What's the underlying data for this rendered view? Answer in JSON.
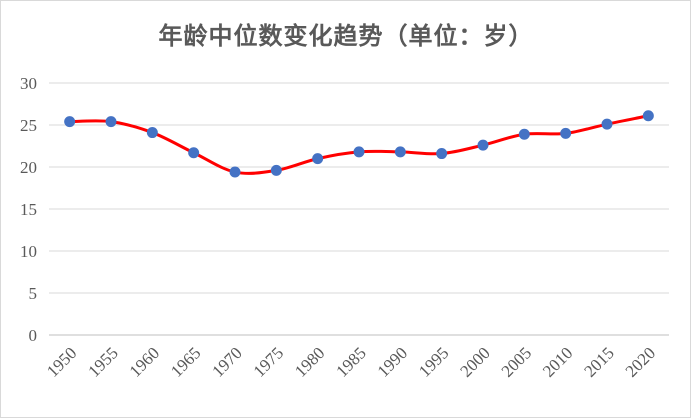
{
  "chart_data": {
    "type": "line",
    "title": "年龄中位数变化趋势（单位：岁）",
    "xlabel": "",
    "ylabel": "",
    "x": [
      "1950",
      "1955",
      "1960",
      "1965",
      "1970",
      "1975",
      "1980",
      "1985",
      "1990",
      "1995",
      "2000",
      "2005",
      "2010",
      "2015",
      "2020"
    ],
    "series": [
      {
        "values": [
          25.4,
          25.4,
          24.1,
          21.7,
          19.4,
          19.6,
          21.0,
          21.8,
          21.8,
          21.6,
          22.6,
          23.9,
          24.0,
          25.1,
          26.1
        ],
        "line_color": "#ff0000",
        "marker_color": "#4472c4"
      }
    ],
    "ylim": [
      0,
      30
    ],
    "yticks": [
      "0",
      "5",
      "10",
      "15",
      "20",
      "25",
      "30"
    ],
    "grid": true,
    "smooth": true,
    "legend": "none"
  }
}
